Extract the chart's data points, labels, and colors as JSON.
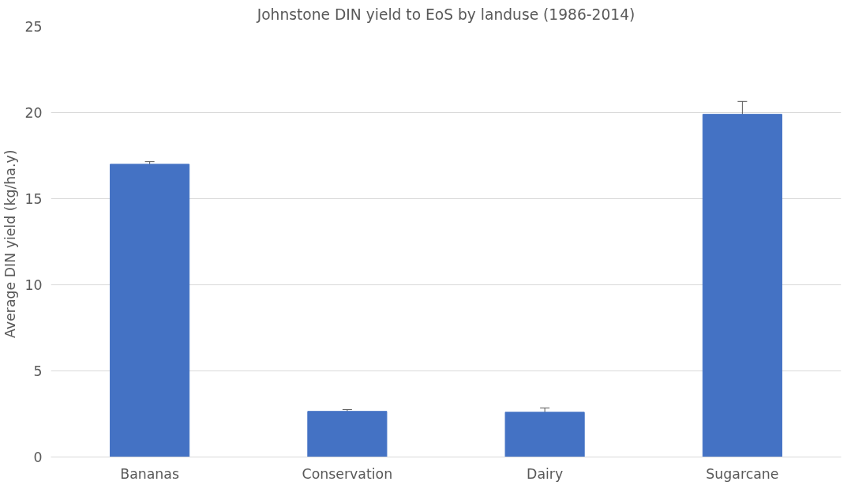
{
  "chart_data": {
    "type": "bar",
    "title": "Johnstone DIN yield to EoS by landuse (1986-2014)",
    "ylabel": "Average DIN yield  (kg/ha.y)",
    "categories": [
      "Bananas",
      "Conservation",
      "Dairy",
      "Sugarcane"
    ],
    "values": [
      17.0,
      2.65,
      2.6,
      19.9
    ],
    "errors": [
      0.15,
      0.1,
      0.25,
      0.75
    ],
    "color": "#4472c4",
    "ylim": [
      0,
      25
    ],
    "yticks": [
      0,
      5,
      10,
      15,
      20,
      25
    ],
    "grid": "y"
  }
}
